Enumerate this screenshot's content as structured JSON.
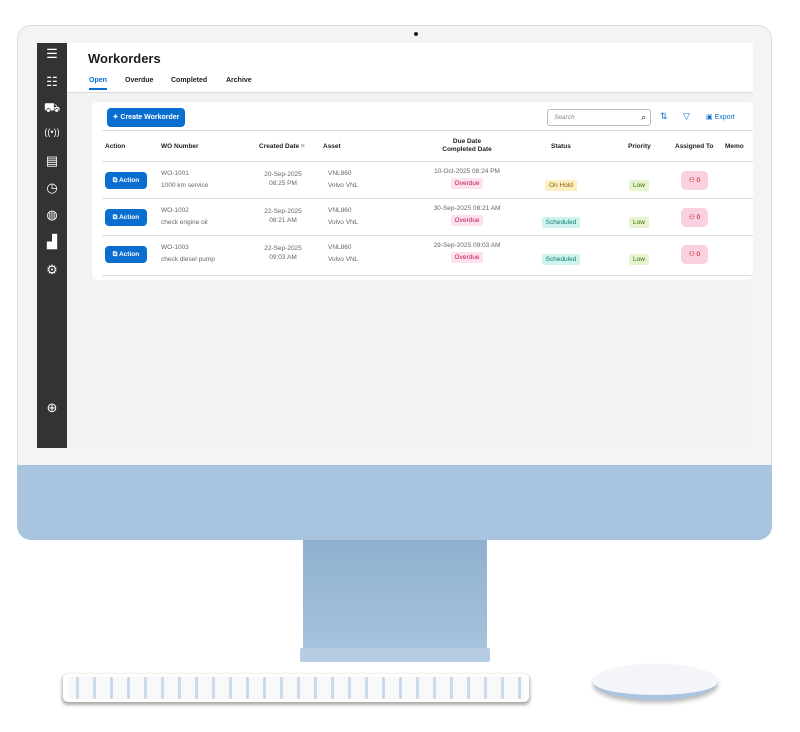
{
  "page": {
    "title": "Workorders"
  },
  "tabs": [
    "Open",
    "Overdue",
    "Completed",
    "Archive"
  ],
  "active_tab": "Open",
  "toolbar": {
    "create_label": "Create Workorder",
    "search_placeholder": "Search",
    "export_label": "Export"
  },
  "columns": {
    "action": "Action",
    "wo": "WO Number",
    "created": "Created Date",
    "asset": "Asset",
    "due": "Due Date",
    "completed": "Completed Date",
    "status": "Status",
    "priority": "Priority",
    "assigned": "Assigned To",
    "memo": "Memo"
  },
  "rows": [
    {
      "action": "Action",
      "wo": "WO-1001",
      "desc": "1000 km service",
      "created_date": "20-Sep-2025",
      "created_time": "08:25 PM",
      "asset": "VNL860",
      "asset_model": "Volvo VNL",
      "due": "10-Oct-2025 08:24 PM",
      "due_flag": "Overdue",
      "status": "On Hold",
      "priority": "Low",
      "assigned": "0"
    },
    {
      "action": "Action",
      "wo": "WO-1002",
      "desc": "check engine oil",
      "created_date": "22-Sep-2025",
      "created_time": "08:21 AM",
      "asset": "VNL860",
      "asset_model": "Volvo VNL",
      "due": "30-Sep-2025 08:21 AM",
      "due_flag": "Overdue",
      "status": "Scheduled",
      "priority": "Low",
      "assigned": "0"
    },
    {
      "action": "Action",
      "wo": "WO-1003",
      "desc": "check diesel pump",
      "created_date": "22-Sep-2025",
      "created_time": "09:03 AM",
      "asset": "VNL860",
      "asset_model": "Volvo VNL",
      "due": "29-Sep-2025 09:03 AM",
      "due_flag": "Overdue",
      "status": "Scheduled",
      "priority": "Low",
      "assigned": "0"
    }
  ],
  "colors": {
    "accent": "#0a6ed1",
    "sidebar": "#333333",
    "overdue": "#c0155b",
    "on_hold": "#fdefc2",
    "scheduled": "#cdf5ee",
    "low": "#e6f5cf",
    "assigned": "#fbd0e0"
  },
  "sidebar_icons": [
    "menu-icon",
    "checklist-icon",
    "vehicle-icon",
    "broadcast-icon",
    "calendar-icon",
    "clock-icon",
    "globe-icon",
    "chart-icon",
    "gear-icon",
    "help-icon"
  ]
}
